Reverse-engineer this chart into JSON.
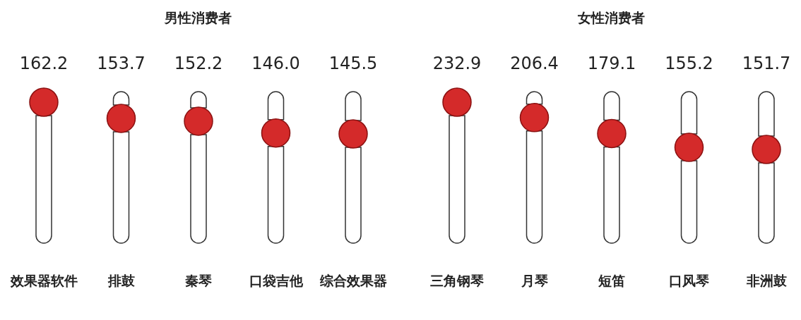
{
  "chart_data": [
    {
      "type": "scatter",
      "title": "男性消费者",
      "categories": [
        "效果器软件",
        "排鼓",
        "秦琴",
        "口袋吉他",
        "综合效果器"
      ],
      "values": [
        162.2,
        153.7,
        152.2,
        146.0,
        145.5
      ],
      "value_labels": [
        "162.2",
        "153.7",
        "152.2",
        "146.0",
        "145.5"
      ],
      "color": "#d42a2a",
      "marker": "circle"
    },
    {
      "type": "scatter",
      "title": "女性消费者",
      "categories": [
        "三角钢琴",
        "月琴",
        "短笛",
        "口风琴",
        "非洲鼓"
      ],
      "values": [
        232.9,
        206.4,
        179.1,
        155.2,
        151.7
      ],
      "value_labels": [
        "232.9",
        "206.4",
        "179.1",
        "155.2",
        "151.7"
      ],
      "color": "#d42a2a",
      "marker": "circle"
    }
  ]
}
